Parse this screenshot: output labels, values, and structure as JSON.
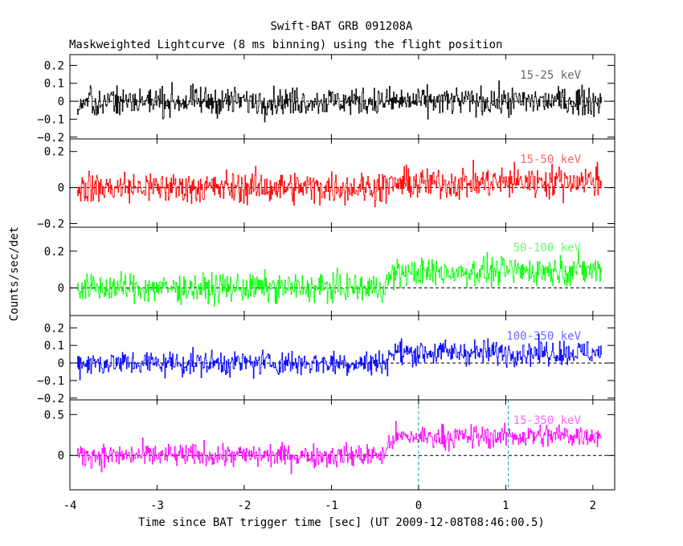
{
  "chart_data": {
    "type": "line",
    "title": "Swift-BAT GRB 091208A",
    "subtitle": "Maskweighted Lightcurve (8 ms binning) using the flight position",
    "xlabel": "Time since BAT trigger time [sec] (UT 2009-12-08T08:46:00.5)",
    "ylabel": "Counts/sec/det",
    "xlim": [
      -4.0,
      2.25
    ],
    "x_ticks": [
      "-4",
      "-3",
      "-2",
      "-1",
      "0",
      "1",
      "2"
    ],
    "x_tick_values": [
      -4,
      -3,
      -2,
      -1,
      0,
      1,
      2
    ],
    "bin_width_sec": 0.008,
    "x_range_data": [
      -3.92,
      2.1
    ],
    "vlines": [
      0.0,
      1.03
    ],
    "panels": [
      {
        "name": "15-25 keV",
        "color": "#000000",
        "ylim": [
          -0.21,
          0.26
        ],
        "yticks": [
          0.2,
          0.1,
          0,
          -0.1,
          -0.2
        ],
        "ytick_labels": [
          "0.2",
          "0.1",
          "0",
          "−0.1",
          "−0.2"
        ],
        "baseline": [
          [
            -3.92,
            0.0
          ],
          [
            2.1,
            0.0
          ]
        ],
        "noise_amplitude": 0.07
      },
      {
        "name": "15-50 keV",
        "color": "#ff0000",
        "ylim": [
          -0.22,
          0.27
        ],
        "yticks": [
          0.2,
          0,
          -0.2
        ],
        "ytick_labels": [
          "0.2",
          "0",
          "−0.2"
        ],
        "baseline": [
          [
            -3.92,
            0.0
          ],
          [
            -0.4,
            0.0
          ],
          [
            -0.3,
            0.02
          ],
          [
            2.1,
            0.04
          ]
        ],
        "noise_amplitude": 0.08
      },
      {
        "name": "50-100 keV",
        "color": "#00ff00",
        "ylim": [
          -0.15,
          0.33
        ],
        "yticks": [
          0.2,
          0
        ],
        "ytick_labels": [
          "0.2",
          "0"
        ],
        "baseline": [
          [
            -3.92,
            0.0
          ],
          [
            -0.4,
            0.0
          ],
          [
            -0.3,
            0.08
          ],
          [
            2.1,
            0.1
          ]
        ],
        "noise_amplitude": 0.07
      },
      {
        "name": "100-350 keV",
        "color": "#0000ff",
        "ylim": [
          -0.21,
          0.27
        ],
        "yticks": [
          0.2,
          0.1,
          0,
          -0.1,
          -0.2
        ],
        "ytick_labels": [
          "0.2",
          "0.1",
          "0",
          "−0.1",
          "−0.2"
        ],
        "baseline": [
          [
            -3.92,
            0.0
          ],
          [
            -0.4,
            0.0
          ],
          [
            -0.3,
            0.06
          ],
          [
            2.1,
            0.06
          ]
        ],
        "noise_amplitude": 0.065
      },
      {
        "name": "15-350 keV",
        "color": "#ff00ff",
        "ylim": [
          -0.42,
          0.68
        ],
        "yticks": [
          0.5,
          0
        ],
        "ytick_labels": [
          "0.5",
          "0"
        ],
        "baseline": [
          [
            -3.92,
            0.0
          ],
          [
            -0.4,
            0.0
          ],
          [
            -0.3,
            0.22
          ],
          [
            2.1,
            0.25
          ]
        ],
        "noise_amplitude": 0.13
      }
    ]
  }
}
